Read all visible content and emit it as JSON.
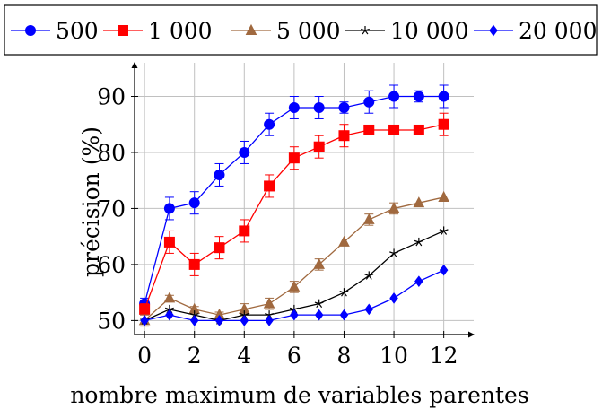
{
  "chart_data": {
    "type": "line",
    "xlabel": "nombre maximum de variables parentes",
    "ylabel": "précision (%)",
    "xlim": [
      -0.4,
      13.2
    ],
    "ylim": [
      47.5,
      96
    ],
    "x_ticks": [
      0,
      2,
      4,
      6,
      8,
      10,
      12
    ],
    "y_ticks": [
      50,
      60,
      70,
      80,
      90
    ],
    "grid": true,
    "legend_position": "top",
    "x": [
      0,
      1,
      2,
      3,
      4,
      5,
      6,
      7,
      8,
      9,
      10,
      11,
      12
    ],
    "series": [
      {
        "name": "500",
        "color": "#0000ff",
        "marker": "circle",
        "values": [
          53,
          70,
          71,
          76,
          80,
          85,
          88,
          88,
          88,
          89,
          90,
          90,
          90
        ],
        "errors": [
          1,
          2,
          2,
          2,
          2,
          2,
          2,
          2,
          1,
          2,
          2,
          1,
          2
        ]
      },
      {
        "name": "1 000",
        "color": "#ff0000",
        "marker": "square",
        "values": [
          52,
          64,
          60,
          63,
          66,
          74,
          79,
          81,
          83,
          84,
          84,
          84,
          85
        ],
        "errors": [
          1,
          2,
          2,
          2,
          2,
          2,
          2,
          2,
          2,
          0,
          0,
          0,
          2
        ]
      },
      {
        "name": "5 000",
        "color": "#a0693f",
        "marker": "triangle",
        "values": [
          50,
          54,
          52,
          51,
          52,
          53,
          56,
          60,
          64,
          68,
          70,
          71,
          72
        ],
        "errors": [
          1,
          0.5,
          0.5,
          0.5,
          1,
          1,
          1,
          1,
          0,
          1,
          1,
          0,
          0
        ]
      },
      {
        "name": "10 000",
        "color": "#000000",
        "marker": "star",
        "values": [
          50,
          52,
          51,
          50,
          51,
          51,
          52,
          53,
          55,
          58,
          62,
          64,
          66
        ],
        "errors": [
          0,
          0,
          0,
          0,
          0,
          0,
          0,
          0,
          0,
          0,
          0,
          0,
          0
        ]
      },
      {
        "name": "20 000",
        "color": "#0000ff",
        "marker": "diamond",
        "values": [
          50,
          51,
          50,
          50,
          50,
          50,
          51,
          51,
          51,
          52,
          54,
          57,
          59
        ],
        "errors": [
          0,
          0,
          0,
          0,
          0,
          0,
          0,
          0,
          0,
          0,
          0,
          0,
          0
        ]
      }
    ]
  }
}
